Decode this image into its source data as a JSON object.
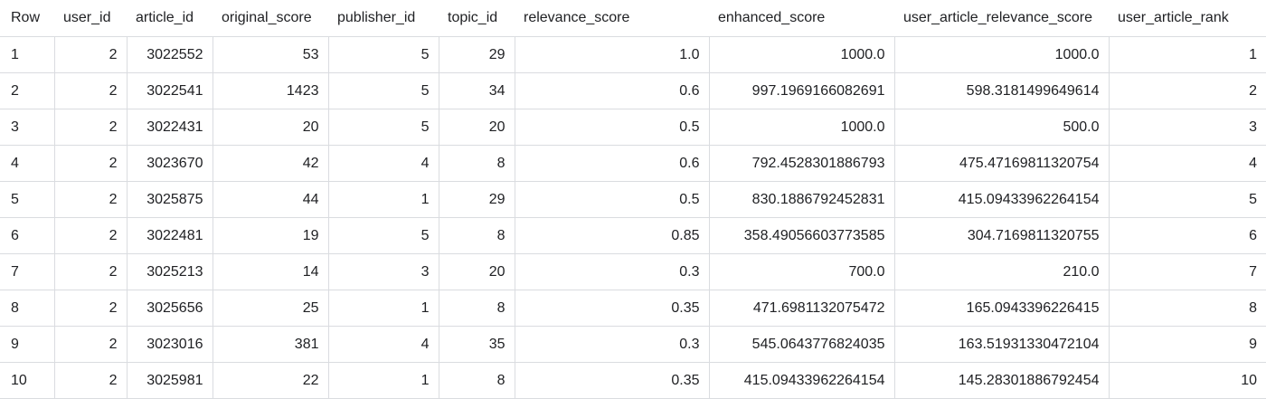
{
  "table": {
    "columns": [
      "Row",
      "user_id",
      "article_id",
      "original_score",
      "publisher_id",
      "topic_id",
      "relevance_score",
      "enhanced_score",
      "user_article_relevance_score",
      "user_article_rank"
    ],
    "rows": [
      [
        "1",
        "2",
        "3022552",
        "53",
        "5",
        "29",
        "1.0",
        "1000.0",
        "1000.0",
        "1"
      ],
      [
        "2",
        "2",
        "3022541",
        "1423",
        "5",
        "34",
        "0.6",
        "997.1969166082691",
        "598.3181499649614",
        "2"
      ],
      [
        "3",
        "2",
        "3022431",
        "20",
        "5",
        "20",
        "0.5",
        "1000.0",
        "500.0",
        "3"
      ],
      [
        "4",
        "2",
        "3023670",
        "42",
        "4",
        "8",
        "0.6",
        "792.4528301886793",
        "475.47169811320754",
        "4"
      ],
      [
        "5",
        "2",
        "3025875",
        "44",
        "1",
        "29",
        "0.5",
        "830.1886792452831",
        "415.09433962264154",
        "5"
      ],
      [
        "6",
        "2",
        "3022481",
        "19",
        "5",
        "8",
        "0.85",
        "358.49056603773585",
        "304.7169811320755",
        "6"
      ],
      [
        "7",
        "2",
        "3025213",
        "14",
        "3",
        "20",
        "0.3",
        "700.0",
        "210.0",
        "7"
      ],
      [
        "8",
        "2",
        "3025656",
        "25",
        "1",
        "8",
        "0.35",
        "471.6981132075472",
        "165.0943396226415",
        "8"
      ],
      [
        "9",
        "2",
        "3023016",
        "381",
        "4",
        "35",
        "0.3",
        "545.0643776824035",
        "163.51931330472104",
        "9"
      ],
      [
        "10",
        "2",
        "3025981",
        "22",
        "1",
        "8",
        "0.35",
        "415.09433962264154",
        "145.28301886792454",
        "10"
      ]
    ]
  }
}
